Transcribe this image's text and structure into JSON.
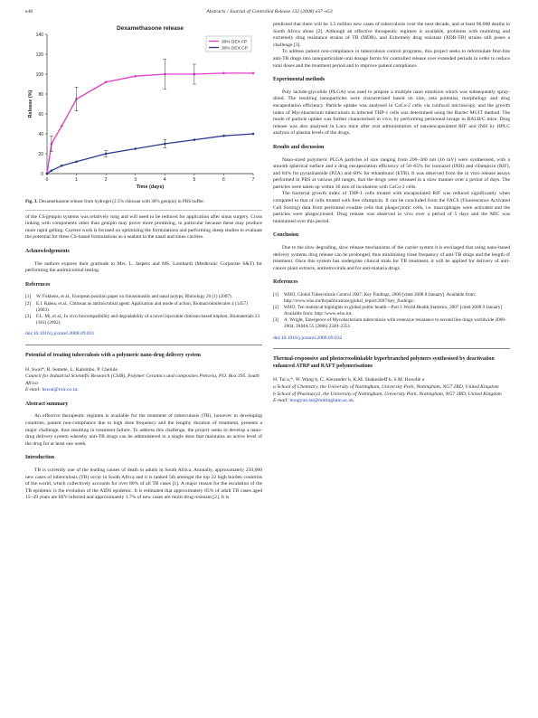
{
  "header": {
    "page_number": "e48",
    "journal": "Abstracts / Journal of Controlled Release 132 (2008) e37–e53"
  },
  "figure": {
    "caption_label": "Fig. 3.",
    "caption_text": "Dexamethasone release from hydrogel (2.5% chitosan with 30% genipin) in PBS buffer."
  },
  "chart_data": {
    "type": "line",
    "title": "Dexamethasone release",
    "xlabel": "Time (days)",
    "ylabel": "Release (%)",
    "xlim": [
      0,
      7
    ],
    "ylim": [
      0,
      140
    ],
    "x_ticks": [
      "0",
      "1",
      "2",
      "3",
      "4",
      "5",
      "6",
      "7"
    ],
    "y_ticks": [
      "0",
      "20",
      "40",
      "60",
      "80",
      "100",
      "120",
      "140"
    ],
    "legend_position": "top-right",
    "grid": false,
    "series": [
      {
        "name": "30% DEX FP",
        "color": "#e23dc8",
        "x": [
          0,
          0.15,
          0.5,
          1,
          2,
          3,
          4,
          5,
          6,
          7
        ],
        "y": [
          0,
          30,
          48,
          75,
          92,
          98,
          100,
          100,
          101,
          101
        ],
        "error_x": [
          0.15,
          1,
          4,
          5
        ],
        "error_y": [
          8,
          12,
          15,
          10
        ]
      },
      {
        "name": "30% DEX CP",
        "color": "#2b3a8f",
        "x": [
          0,
          0.15,
          0.5,
          1,
          2,
          3,
          4,
          5,
          6,
          7
        ],
        "y": [
          0,
          3,
          8,
          12,
          20,
          25,
          30,
          34,
          38,
          40
        ],
        "error_x": [
          2,
          4
        ],
        "error_y": [
          3,
          4
        ]
      }
    ]
  },
  "left": {
    "para1": "of the CS/genipin systems was relatively long and will need to be reduced for application after sinus surgery. Cross linking with components other than genipin may prove more promising, in particular because these may produce more rapid gelling. Current work is focused on optimizing the formulations and performing sheep studies to evaluate the potential for these CS-based formulations as a sealant in the nasal and sinus cavities.",
    "ack_heading": "Acknowledgements",
    "ack_text": "The authors express their gratitude to Mrs. L. Jaspers and MS. Lombardi (Medtronic Corporate S&T) for performing the antimicrobial testing.",
    "refs_heading": "References",
    "refs": [
      {
        "n": "[1]",
        "text": "W. Fokkens, et al., European position paper on rhinosinusitis and nasal polyps, Rhinology 20 (1) (2007)."
      },
      {
        "n": "[2]",
        "text": "E.I. Rabea, et al., Chitosan as antimicrobial agent: Application and mode of action, Biomacromolecules 4 (1457) (2003)."
      },
      {
        "n": "[3]",
        "text": "F.L. Mi, et al., In vivo biocompatibility and degradability of a novel injectable chitosan-based implant, Biomaterials 23 (181) (2002)."
      }
    ],
    "doi": "doi:10.1016/j.jconrel.2008.09.031",
    "article_title": "Potential of treating tuberculosis with a polymeric nano-drug delivery system",
    "authors": "H. Swai*, B. Semete, L. Kalombo, P. Chelule",
    "affiliation": "Council for Industrial Scientific Research (CSIR), Polymer Ceramics and composites Pretoria, P.O. Box 395, South Africa",
    "email_label": "E-mail:",
    "email": "hswai@csir.co.za.",
    "abstract_heading": "Abstract summary",
    "abstract_text": "An effective therapeutic regimen is available for the treatment of tuberculosis (TB), however in developing countries; patient non-compliance due to high dose frequency and the lengthy duration of treatment, presents a major challenge, thus resulting in treatment failure. To address this challenge, the project seeks to develop a nano-drug delivery system whereby anti-TB drugs can be administered in a single dose that maintains an active level of the drug for at least one week.",
    "intro_heading": "Introduction",
    "intro_text": "TB is currently one of the leading causes of death in adults in South Africa. Annually, approximately 250,000 new cases of tuberculosis (TB) occur in South Africa and it is ranked 5th amongst the top 22 high burden countries of the world, which collectively accounts for over 80% of all TB cases [1]. A major reason for the escalation of the TB epidemic is the evolution of the AIDS epidemic. It is estimated that approximately 85% of adult TB cases aged 15–49 years are HIV-infected and approximately 1.7% of new cases are multi-drug resistant [2]. It is"
  },
  "right": {
    "para1": "predicted that there will be 3.5 million new cases of tuberculosis over the next decade, and at least 90,000 deaths in South Africa alone [2]. Although an effective therapeutic regimen is available, problems with multidrug and extremely drug resistance strains of TB (MDR), and Extremely drug resistant (XDR-TB) strains still poses a challenge [3].",
    "para2": "To address patient non-compliance in tuberculosis control programs, this project seeks to reformulate first-line anti-TB drugs into nanoparticulate oral dosage forms for controlled release over extended periods in order to reduce total doses and the treatment period and to improve patient compliance.",
    "methods_heading": "Experimental methods",
    "methods_text": "Poly lactide-glycolide (PLGA) was used to prepare a multiple nano emulsion which was subsequently spray-dried. The resulting nanoparticles were characterised based on size, zeta potential, morphology and drug encapsulation efficiency. Particle uptake was analysed in CaCo-2 cells via confocal microscopy, and the growth index of Mycobacterium tuberculosis in infected THP-1 cells was determined using the Bactec MGIT method. The mode of particle uptake was further characterised in vivo, by performing peritoneal lavage in BALB/C mice. Drug release was also analysed in Laca mice after oral administration of nanoencapsulated RIF and INH by HPLC analysis of plasma levels of the drugs.",
    "results_heading": "Results and discussion",
    "results_text1": "Nano-sized polymeric PLGA particles of size ranging from 200–300 nm (16 mV) were synthesised, with a smooth spherical surface and a drug encapsulation efficiency of 50–65% for isoniazid (INH) and rifampicin (RIF), and 84% for pyrazinamide (PZA) and 60% for ethambutol (ETB). It was observed from the in vitro release assays performed in PBS at various pH ranges, that the drugs were released in a slow manner over a period of days. The particles were taken up within 30 min of incubation with CaCo-2 cells.",
    "results_text2": "The bacterial growth index of THP-1 cells treated with encapsulated RIF was reduced significantly when compared to that of cells treated with free rifampicin. It can be concluded from the FACS (Fluorescence Activated Cell Sorting) data from peritoneal exudate cells that phagocytotic cells, i.e. macrophages were activated and the particles were phagocytosed. Drug release was observed in vivo over a period of 5 days and the MIC was maintained over this period.",
    "conclusion_heading": "Conclusion",
    "conclusion_text": "Due to the slow degrading, slow release mechanisms of the carrier system it is envisaged that using nano-based delivery systems drug release can be prolonged, thus minimising close frequency of anti-TB drugs and the length of treatment. Once this system has undergone clinical trials for TB treatment, it will be applied for delivery of anti-cancer plant extracts, antiretrovirals and for anti-malaria drugs.",
    "refs_heading": "References",
    "refs": [
      {
        "n": "[1]",
        "text": "WHO, Global Tuberculosis Control 2007: Key Findings, 2000 [cited 2008 8 January]. Available from: http://www.who.int/tb/publications/global_report/2007/key_findings/."
      },
      {
        "n": "[2]",
        "text": "WHO, Ten statistical highlights in global public health—Part I. World Health Statistics, 2007 [cited 2008 9 January] Available from: http://www.who.int."
      },
      {
        "n": "[3]",
        "text": "A. Wright, Emergence of Mycobacterium tuberculosis with extensive resistance to second line drugs worldwide 2000–2004, JAMA 55 (2006) 2349–2351."
      }
    ],
    "doi": "doi:10.1016/j.jconrel.2008.09.032",
    "article_title": "Thermal-responsive and photocrosslinkable hyperbranched polymers synthesised by deactivation enhanced ATRP and RAFT polymerisations",
    "authors": "H. Tai a,*, W. Wang b, C. Alexander b, K.M. Shakesheff b, S.M. Howdle a",
    "aff_a": "a School of Chemistry, the University of Nottingham, University Park, Nottingham, NG7 2RD, United Kingdom",
    "aff_b": "b School of Pharmacy2, the University of Nottingham, University Park, Nottingham, NG7 2RD, United Kingdom",
    "email_label": "E-mail:",
    "email": "hongyun.tai@nottingham.ac.uk."
  }
}
